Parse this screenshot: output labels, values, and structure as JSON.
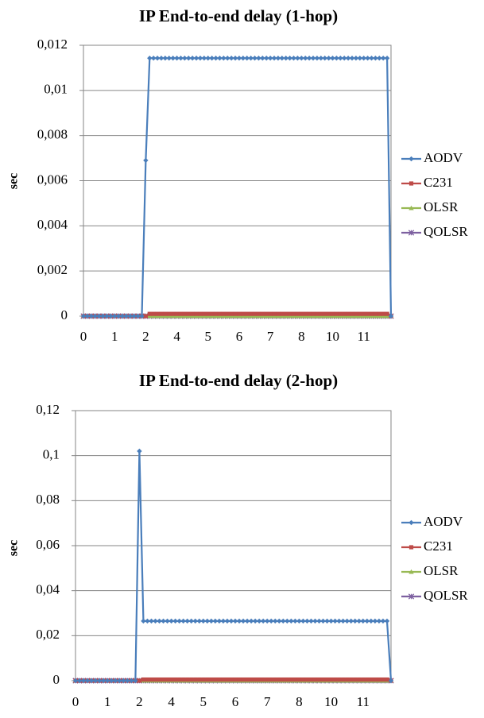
{
  "chart_data": [
    {
      "type": "line",
      "title": "IP End-to-end delay (1-hop)",
      "y_label": "sec",
      "grid": true,
      "legend": "right",
      "categories": [
        "0",
        null,
        null,
        null,
        null,
        null,
        null,
        null,
        "1",
        null,
        null,
        null,
        null,
        null,
        null,
        null,
        "2",
        null,
        null,
        null,
        null,
        null,
        null,
        null,
        "4",
        null,
        null,
        null,
        null,
        null,
        null,
        null,
        "5",
        null,
        null,
        null,
        null,
        null,
        null,
        null,
        "6",
        null,
        null,
        null,
        null,
        null,
        null,
        null,
        "7",
        null,
        null,
        null,
        null,
        null,
        null,
        null,
        "8",
        null,
        null,
        null,
        null,
        null,
        null,
        null,
        "10",
        null,
        null,
        null,
        null,
        null,
        null,
        null,
        "11",
        null,
        null,
        null,
        null,
        null,
        null,
        null
      ],
      "ylim": [
        0,
        0.012
      ],
      "yticks": [
        0,
        {
          "value": 0.002,
          "label": "0,002"
        },
        {
          "value": 0.004,
          "label": "0,004"
        },
        {
          "value": 0.006,
          "label": "0,006"
        },
        {
          "value": 0.008,
          "label": "0,008"
        },
        {
          "value": 0.01,
          "label": "0,01"
        },
        {
          "value": 0.012,
          "label": "0,012"
        }
      ],
      "series": [
        {
          "name": "AODV",
          "color": "#4a7ebb",
          "values": [
            0,
            0,
            0,
            0,
            0,
            0,
            0,
            0,
            0,
            0,
            0,
            0,
            0,
            0,
            0,
            0,
            0.0069,
            0.01143,
            0.01143,
            0.01143,
            0.01143,
            0.01143,
            0.01143,
            0.01143,
            0.01143,
            0.01143,
            0.01143,
            0.01143,
            0.01143,
            0.01143,
            0.01143,
            0.01143,
            0.01143,
            0.01143,
            0.01143,
            0.01143,
            0.01143,
            0.01143,
            0.01143,
            0.01143,
            0.01143,
            0.01143,
            0.01143,
            0.01143,
            0.01143,
            0.01143,
            0.01143,
            0.01143,
            0.01143,
            0.01143,
            0.01143,
            0.01143,
            0.01143,
            0.01143,
            0.01143,
            0.01143,
            0.01143,
            0.01143,
            0.01143,
            0.01143,
            0.01143,
            0.01143,
            0.01143,
            0.01143,
            0.01143,
            0.01143,
            0.01143,
            0.01143,
            0.01143,
            0.01143,
            0.01143,
            0.01143,
            0.01143,
            0.01143,
            0.01143,
            0.01143,
            0.01143,
            0.01143,
            0.01143,
            0
          ]
        },
        {
          "name": "C231",
          "color": "#be4b48",
          "values": [
            0,
            0,
            0,
            0,
            0,
            0,
            0,
            0,
            0,
            0,
            0,
            0,
            0,
            0,
            0,
            0,
            0,
            0.0001,
            0.0001,
            0.0001,
            0.0001,
            0.0001,
            0.0001,
            0.0001,
            0.0001,
            0.0001,
            0.0001,
            0.0001,
            0.0001,
            0.0001,
            0.0001,
            0.0001,
            0.0001,
            0.0001,
            0.0001,
            0.0001,
            0.0001,
            0.0001,
            0.0001,
            0.0001,
            0.0001,
            0.0001,
            0.0001,
            0.0001,
            0.0001,
            0.0001,
            0.0001,
            0.0001,
            0.0001,
            0.0001,
            0.0001,
            0.0001,
            0.0001,
            0.0001,
            0.0001,
            0.0001,
            0.0001,
            0.0001,
            0.0001,
            0.0001,
            0.0001,
            0.0001,
            0.0001,
            0.0001,
            0.0001,
            0.0001,
            0.0001,
            0.0001,
            0.0001,
            0.0001,
            0.0001,
            0.0001,
            0.0001,
            0.0001,
            0.0001,
            0.0001,
            0.0001,
            0.0001,
            0.0001,
            0
          ]
        },
        {
          "name": "OLSR",
          "color": "#98b954",
          "values": [
            0,
            0,
            0,
            0,
            0,
            0,
            0,
            0,
            0,
            0,
            0,
            0,
            0,
            0,
            0,
            0,
            0,
            0,
            0,
            0,
            0,
            0,
            0,
            0,
            0,
            0,
            0,
            0,
            0,
            0,
            0,
            0,
            0,
            0,
            0,
            0,
            0,
            0,
            0,
            0,
            0,
            0,
            0,
            0,
            0,
            0,
            0,
            0,
            0,
            0,
            0,
            0,
            0,
            0,
            0,
            0,
            0,
            0,
            0,
            0,
            0,
            0,
            0,
            0,
            0,
            0,
            0,
            0,
            0,
            0,
            0,
            0,
            0,
            0,
            0,
            0,
            0,
            0,
            0,
            0
          ]
        },
        {
          "name": "QOLSR",
          "color": "#7d60a0",
          "values": [
            0,
            0,
            0,
            0,
            0,
            0,
            0,
            0,
            0,
            0,
            0,
            0,
            0,
            0,
            0,
            0,
            0,
            0,
            0,
            0,
            0,
            0,
            0,
            0,
            0,
            0,
            0,
            0,
            0,
            0,
            0,
            0,
            0,
            0,
            0,
            0,
            0,
            0,
            0,
            0,
            0,
            0,
            0,
            0,
            0,
            0,
            0,
            0,
            0,
            0,
            0,
            0,
            0,
            0,
            0,
            0,
            0,
            0,
            0,
            0,
            0,
            0,
            0,
            0,
            0,
            0,
            0,
            0,
            0,
            0,
            0,
            0,
            0,
            0,
            0,
            0,
            0,
            0,
            0,
            0
          ]
        }
      ]
    },
    {
      "type": "line",
      "title": "IP End-to-end delay (2-hop)",
      "y_label": "sec",
      "grid": true,
      "legend": "right",
      "categories": [
        "0",
        null,
        null,
        null,
        null,
        null,
        null,
        null,
        "1",
        null,
        null,
        null,
        null,
        null,
        null,
        null,
        "2",
        null,
        null,
        null,
        null,
        null,
        null,
        null,
        "4",
        null,
        null,
        null,
        null,
        null,
        null,
        null,
        "5",
        null,
        null,
        null,
        null,
        null,
        null,
        null,
        "6",
        null,
        null,
        null,
        null,
        null,
        null,
        null,
        "7",
        null,
        null,
        null,
        null,
        null,
        null,
        null,
        "8",
        null,
        null,
        null,
        null,
        null,
        null,
        null,
        "10",
        null,
        null,
        null,
        null,
        null,
        null,
        null,
        "11",
        null,
        null,
        null,
        null,
        null,
        null,
        null
      ],
      "ylim": [
        0,
        0.12
      ],
      "yticks": [
        0,
        {
          "value": 0.02,
          "label": "0,02"
        },
        {
          "value": 0.04,
          "label": "0,04"
        },
        {
          "value": 0.06,
          "label": "0,06"
        },
        {
          "value": 0.08,
          "label": "0,08"
        },
        {
          "value": 0.1,
          "label": "0,1"
        },
        {
          "value": 0.12,
          "label": "0,12"
        }
      ],
      "series": [
        {
          "name": "AODV",
          "color": "#4a7ebb",
          "values": [
            0,
            0,
            0,
            0,
            0,
            0,
            0,
            0,
            0,
            0,
            0,
            0,
            0,
            0,
            0,
            0,
            0.102,
            0.0265,
            0.0265,
            0.0265,
            0.0265,
            0.0265,
            0.0265,
            0.0265,
            0.0265,
            0.0265,
            0.0265,
            0.0265,
            0.0265,
            0.0265,
            0.0265,
            0.0265,
            0.0265,
            0.0265,
            0.0265,
            0.0265,
            0.0265,
            0.0265,
            0.0265,
            0.0265,
            0.0265,
            0.0265,
            0.0265,
            0.0265,
            0.0265,
            0.0265,
            0.0265,
            0.0265,
            0.0265,
            0.0265,
            0.0265,
            0.0265,
            0.0265,
            0.0265,
            0.0265,
            0.0265,
            0.0265,
            0.0265,
            0.0265,
            0.0265,
            0.0265,
            0.0265,
            0.0265,
            0.0265,
            0.0265,
            0.0265,
            0.0265,
            0.0265,
            0.0265,
            0.0265,
            0.0265,
            0.0265,
            0.0265,
            0.0265,
            0.0265,
            0.0265,
            0.0265,
            0.0265,
            0.0265,
            0
          ]
        },
        {
          "name": "C231",
          "color": "#be4b48",
          "values": [
            0,
            0,
            0,
            0,
            0,
            0,
            0,
            0,
            0,
            0,
            0,
            0,
            0,
            0,
            0,
            0,
            0,
            0.0005,
            0.0005,
            0.0005,
            0.0005,
            0.0005,
            0.0005,
            0.0005,
            0.0005,
            0.0005,
            0.0005,
            0.0005,
            0.0005,
            0.0005,
            0.0005,
            0.0005,
            0.0005,
            0.0005,
            0.0005,
            0.0005,
            0.0005,
            0.0005,
            0.0005,
            0.0005,
            0.0005,
            0.0005,
            0.0005,
            0.0005,
            0.0005,
            0.0005,
            0.0005,
            0.0005,
            0.0005,
            0.0005,
            0.0005,
            0.0005,
            0.0005,
            0.0005,
            0.0005,
            0.0005,
            0.0005,
            0.0005,
            0.0005,
            0.0005,
            0.0005,
            0.0005,
            0.0005,
            0.0005,
            0.0005,
            0.0005,
            0.0005,
            0.0005,
            0.0005,
            0.0005,
            0.0005,
            0.0005,
            0.0005,
            0.0005,
            0.0005,
            0.0005,
            0.0005,
            0.0005,
            0.0005,
            0
          ]
        },
        {
          "name": "OLSR",
          "color": "#98b954",
          "values": [
            0,
            0,
            0,
            0,
            0,
            0,
            0,
            0,
            0,
            0,
            0,
            0,
            0,
            0,
            0,
            0,
            0,
            0,
            0,
            0,
            0,
            0,
            0,
            0,
            0,
            0,
            0,
            0,
            0,
            0,
            0,
            0,
            0,
            0,
            0,
            0,
            0,
            0,
            0,
            0,
            0,
            0,
            0,
            0,
            0,
            0,
            0,
            0,
            0,
            0,
            0,
            0,
            0,
            0,
            0,
            0,
            0,
            0,
            0,
            0,
            0,
            0,
            0,
            0,
            0,
            0,
            0,
            0,
            0,
            0,
            0,
            0,
            0,
            0,
            0,
            0,
            0,
            0,
            0,
            0
          ]
        },
        {
          "name": "QOLSR",
          "color": "#7d60a0",
          "values": [
            0,
            0,
            0,
            0,
            0,
            0,
            0,
            0,
            0,
            0,
            0,
            0,
            0,
            0,
            0,
            0,
            0,
            0,
            0,
            0,
            0,
            0,
            0,
            0,
            0,
            0,
            0,
            0,
            0,
            0,
            0,
            0,
            0,
            0,
            0,
            0,
            0,
            0,
            0,
            0,
            0,
            0,
            0,
            0,
            0,
            0,
            0,
            0,
            0,
            0,
            0,
            0,
            0,
            0,
            0,
            0,
            0,
            0,
            0,
            0,
            0,
            0,
            0,
            0,
            0,
            0,
            0,
            0,
            0,
            0,
            0,
            0,
            0,
            0,
            0,
            0,
            0,
            0,
            0,
            0
          ]
        }
      ]
    }
  ]
}
